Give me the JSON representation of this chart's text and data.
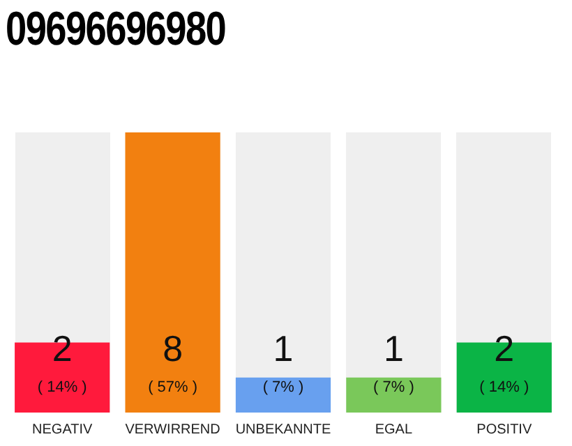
{
  "chart_data": {
    "type": "bar",
    "title": "09696696980",
    "categories": [
      "NEGATIV",
      "VERWIRREND",
      "UNBEKANNTE",
      "EGAL",
      "POSITIV"
    ],
    "values": [
      2,
      8,
      1,
      1,
      2
    ],
    "colors": [
      "#ff1a3c",
      "#f28010",
      "#68a0ef",
      "#7ac85a",
      "#0bb446"
    ],
    "value_labels": [
      "2",
      "8",
      "1",
      "1",
      "2"
    ],
    "annotations": [
      "( 14% )",
      "( 57% )",
      "( 7% )",
      "( 7% )",
      "( 14% )"
    ],
    "tick_labels": "x",
    "grid": false,
    "legend": false
  }
}
